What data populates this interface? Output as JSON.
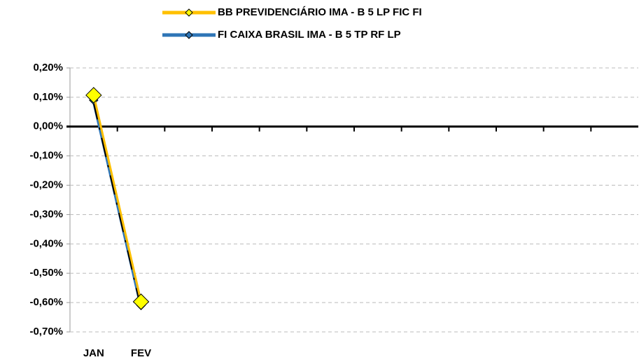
{
  "chart_data": {
    "type": "line",
    "categories": [
      "JAN",
      "FEV",
      null,
      null,
      null,
      null,
      null,
      null,
      null,
      null,
      null,
      null
    ],
    "series": [
      {
        "name": "BB PREVIDENCIÁRIO IMA - B 5 LP FIC FI",
        "color": "#ffc000",
        "values": [
          0.107,
          -0.597,
          null,
          null,
          null,
          null,
          null,
          null,
          null,
          null,
          null,
          null
        ]
      },
      {
        "name": "FI CAIXA BRASIL IMA - B 5 TP RF LP",
        "color": "#2e75b6",
        "values": [
          0.09,
          -0.61,
          null,
          null,
          null,
          null,
          null,
          null,
          null,
          null,
          null,
          null
        ]
      }
    ],
    "ylim": [
      -0.7,
      0.2
    ],
    "yticks": [
      {
        "value": 0.2,
        "label": "0,20%"
      },
      {
        "value": 0.1,
        "label": "0,10%"
      },
      {
        "value": 0,
        "label": "0,00%"
      },
      {
        "value": -0.1,
        "label": "-0,10%"
      },
      {
        "value": -0.2,
        "label": "-0,20%"
      },
      {
        "value": -0.3,
        "label": "-0,30%"
      },
      {
        "value": -0.4,
        "label": "-0,40%"
      },
      {
        "value": -0.5,
        "label": "-0,50%"
      },
      {
        "value": -0.6,
        "label": "-0,60%"
      },
      {
        "value": -0.7,
        "label": "-0,70%"
      }
    ],
    "grid": true
  }
}
